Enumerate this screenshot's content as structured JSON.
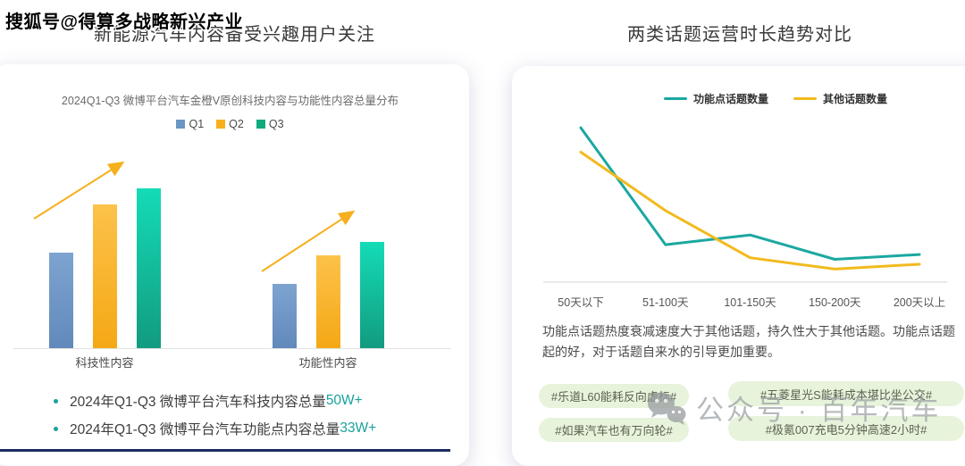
{
  "page": {
    "watermark_sohu": "搜狐号@得算多战略新兴产业",
    "left_panel": {
      "title": "新能源汽车内容备受兴趣用户关注",
      "chart_subtitle": "2024Q1-Q3 微博平台汽车金橙V原创科技内容与功能性内容总量分布",
      "bullets": [
        {
          "text": "2024年Q1-Q3 微博平台汽车科技内容总量",
          "highlight": "50W+"
        },
        {
          "text": "2024年Q1-Q3 微博平台汽车功能点内容总量",
          "highlight": "33W+"
        }
      ]
    },
    "right_panel": {
      "title": "两类话题运营时长趋势对比",
      "insight": "功能点话题热度衰减速度大于其他话题，持久性大于其他话题。功能点话题起的好，对于话题自来水的引导更加重要。",
      "hashtags": [
        "#乐道L60能耗反向虚标#",
        "#五菱星光S能耗成本堪比坐公交#",
        "#如果汽车也有万向轮#",
        "#极氪007充电5分钟高速2小时#"
      ],
      "watermark": {
        "icon": "wechat-icon",
        "text": "公众号 · 百年汽车"
      }
    }
  },
  "chart_data": [
    {
      "type": "bar",
      "title": "2024Q1-Q3 微博平台汽车金橙V原创科技内容与功能性内容总量分布",
      "categories": [
        "科技性内容",
        "功能性内容"
      ],
      "series": [
        {
          "name": "Q1",
          "color": "#6c96c4",
          "values": [
            12,
            8
          ]
        },
        {
          "name": "Q2",
          "color": "#f8af1e",
          "values": [
            18,
            11.6
          ]
        },
        {
          "name": "Q3",
          "color": "#10ab7d",
          "values": [
            20,
            13.3
          ]
        }
      ],
      "ylim": [
        0,
        22
      ],
      "grid": false,
      "legend_position": "top",
      "annotations": [
        "upward-trend-arrow over 科技性内容 group",
        "upward-trend-arrow over 功能性内容 group"
      ],
      "group_totals_note": [
        "科技性内容合计 50W+",
        "功能性内容合计 33W+"
      ]
    },
    {
      "type": "line",
      "title": "两类话题运营时长趋势对比",
      "categories": [
        "50天以下",
        "51-100天",
        "101-150天",
        "150-200天",
        "200天以上"
      ],
      "series": [
        {
          "name": "功能点话题数量",
          "color": "#1ba8a0",
          "values": [
            95,
            23,
            29,
            14,
            17
          ]
        },
        {
          "name": "其他话题数量",
          "color": "#f2ba1e",
          "values": [
            80,
            44,
            15,
            8,
            11
          ]
        }
      ],
      "ylim": [
        0,
        100
      ],
      "grid": false,
      "legend_position": "top"
    }
  ],
  "colors": {
    "accent_teal": "#18a39b",
    "arrow_yellow": "#f5b01e",
    "pill_bg": "#e7f3db",
    "bottom_strip_navy": "#1b2a5e"
  }
}
